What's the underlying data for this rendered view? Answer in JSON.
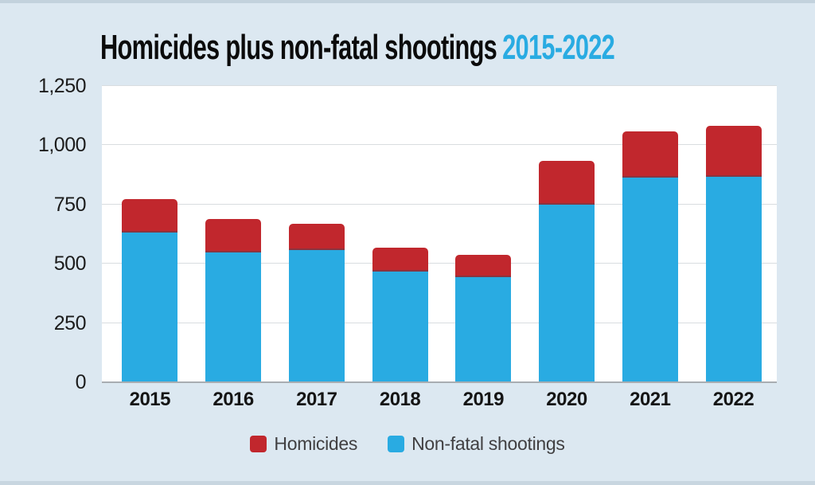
{
  "page": {
    "background_color": "#dce8f1",
    "plot_background_color": "#ffffff",
    "edge_strip_color": "#c3d2dd"
  },
  "title": {
    "text_black": "Homicides plus non-fatal shootings",
    "text_accent": "2015-2022",
    "accent_color": "#29abe2"
  },
  "chart_data": {
    "type": "bar",
    "stacked": true,
    "title": "Homicides plus non-fatal shootings 2015-2022",
    "categories": [
      "2015",
      "2016",
      "2017",
      "2018",
      "2019",
      "2020",
      "2021",
      "2022"
    ],
    "series": [
      {
        "name": "Non-fatal shootings",
        "color": "#29abe2",
        "values": [
          630,
          545,
          555,
          465,
          440,
          745,
          860,
          865
        ]
      },
      {
        "name": "Homicides",
        "color": "#c1272d",
        "values": [
          140,
          140,
          110,
          100,
          95,
          185,
          195,
          215
        ]
      }
    ],
    "stack_totals": [
      770,
      685,
      665,
      565,
      535,
      930,
      1055,
      1080
    ],
    "xlabel": "",
    "ylabel": "",
    "ylim": [
      0,
      1250
    ],
    "yticks": [
      "0",
      "250",
      "500",
      "750",
      "1,000",
      "1,250"
    ],
    "grid": "horizontal",
    "gridline_color": "#d9dde0",
    "baseline_color": "#a8adb2",
    "segment_divider_color": "#8a3440",
    "legend_position": "bottom"
  },
  "legend": {
    "items": [
      {
        "label": "Homicides",
        "color": "#c1272d"
      },
      {
        "label": "Non-fatal shootings",
        "color": "#29abe2"
      }
    ]
  }
}
